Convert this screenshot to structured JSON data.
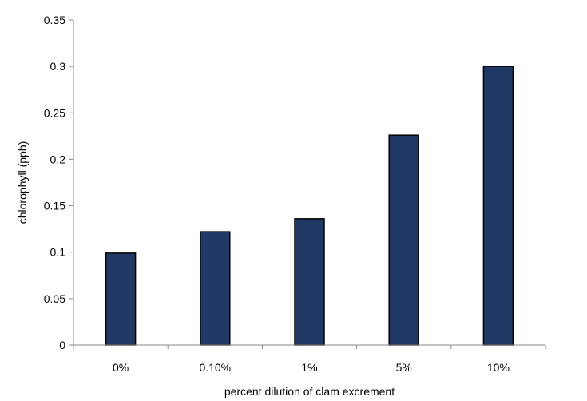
{
  "chart_data": {
    "type": "bar",
    "title": "",
    "xlabel": "percent dilution of clam excrement",
    "ylabel": "chlorophyll (ppb)",
    "categories": [
      "0%",
      "0.10%",
      "1%",
      "5%",
      "10%"
    ],
    "values": [
      0.099,
      0.122,
      0.136,
      0.226,
      0.3
    ],
    "ylim": [
      0,
      0.35
    ],
    "yticks": [
      "0",
      "0.05",
      "0.1",
      "0.15",
      "0.2",
      "0.25",
      "0.3",
      "0.35"
    ],
    "grid": false,
    "legend": "none",
    "bar_color": "#1f3864",
    "bar_edge_color": "#000000"
  }
}
